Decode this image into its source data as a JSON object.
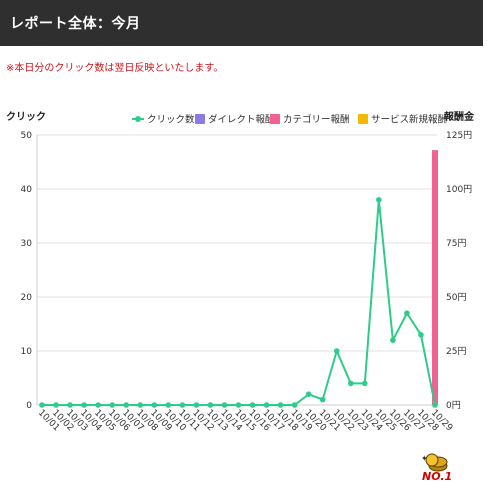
{
  "header": {
    "title": "レポート全体：今月"
  },
  "note": "※本日分のクリック数は翌日反映といたします。",
  "badge": {
    "text": "NO.1",
    "icon": "coins-icon"
  },
  "colors": {
    "clicks": "#2ecc8a",
    "direct": "#8c7ae6",
    "category": "#f06292",
    "service": "#f5b800",
    "header_bg": "#2f2f2f",
    "note": "#d0121b"
  },
  "chart_data": {
    "type": "bar",
    "left_axis_title": "クリック",
    "right_axis_title": "報酬金",
    "x": [
      "10/01",
      "10/02",
      "10/03",
      "10/04",
      "10/05",
      "10/06",
      "10/07",
      "10/08",
      "10/09",
      "10/10",
      "10/11",
      "10/12",
      "10/13",
      "10/14",
      "10/15",
      "10/16",
      "10/17",
      "10/18",
      "10/19",
      "10/20",
      "10/21",
      "10/22",
      "10/23",
      "10/24",
      "10/25",
      "10/26",
      "10/27",
      "10/28",
      "10/29"
    ],
    "left_ylim": [
      0,
      50
    ],
    "left_ticks": [
      "0",
      "10",
      "20",
      "30",
      "40",
      "50"
    ],
    "right_ylim": [
      0,
      125
    ],
    "right_ticks": [
      "0円",
      "25円",
      "50円",
      "75円",
      "100円",
      "125円"
    ],
    "legend_position": "top-right",
    "grid": true,
    "series": [
      {
        "name": "クリック数",
        "type": "line",
        "axis": "left",
        "values": [
          0,
          0,
          0,
          0,
          0,
          0,
          0,
          0,
          0,
          0,
          0,
          0,
          0,
          0,
          0,
          0,
          0,
          0,
          0,
          2,
          1,
          10,
          4,
          4,
          38,
          12,
          17,
          13,
          0
        ]
      },
      {
        "name": "ダイレクト報酬",
        "type": "bar",
        "axis": "right",
        "values": [
          0,
          0,
          0,
          0,
          0,
          0,
          0,
          0,
          0,
          0,
          0,
          0,
          0,
          0,
          0,
          0,
          0,
          0,
          0,
          0,
          0,
          0,
          0,
          0,
          0,
          0,
          0,
          0,
          0
        ]
      },
      {
        "name": "カテゴリー報酬",
        "type": "bar",
        "axis": "right",
        "values": [
          0,
          0,
          0,
          0,
          0,
          0,
          0,
          0,
          0,
          0,
          0,
          0,
          0,
          0,
          0,
          0,
          0,
          0,
          0,
          0,
          0,
          0,
          0,
          0,
          0,
          0,
          0,
          0,
          118
        ]
      },
      {
        "name": "サービス新規報酬",
        "type": "bar",
        "axis": "right",
        "values": [
          0,
          0,
          0,
          0,
          0,
          0,
          0,
          0,
          0,
          0,
          0,
          0,
          0,
          0,
          0,
          0,
          0,
          0,
          0,
          0,
          0,
          0,
          0,
          0,
          0,
          0,
          0,
          0,
          0
        ]
      }
    ]
  }
}
